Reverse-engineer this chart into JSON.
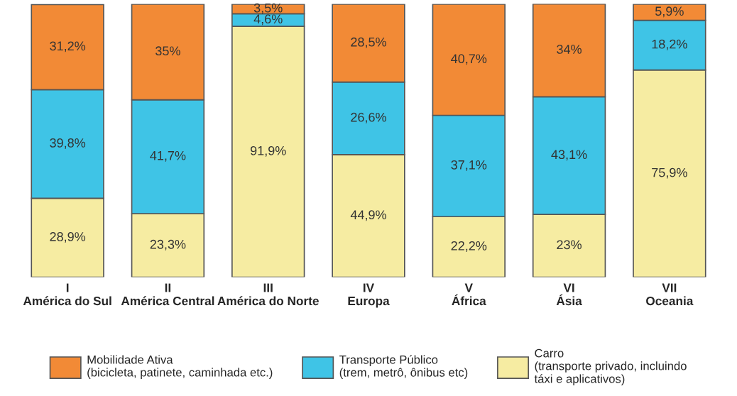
{
  "chart_data": {
    "type": "bar",
    "stacked": true,
    "legend": "bottom",
    "categories": [
      "I\nAmérica do Sul",
      "II\nAmérica Central",
      "III\nAmérica do Norte",
      "IV\nEuropa",
      "V\nÁfrica",
      "VI\nÁsia",
      "VII\nOceania"
    ],
    "series": [
      {
        "name": "Carro\n(transporte privado, incluindo\ntáxi e aplicativos)",
        "color": "#f6eca2",
        "values": [
          28.9,
          23.3,
          91.9,
          44.9,
          22.2,
          23,
          75.9
        ],
        "value_labels": [
          "28,9%",
          "23,3%",
          "91,9%",
          "44,9%",
          "22,2%",
          "23%",
          "75,9%"
        ]
      },
      {
        "name": "Transporte Público\n(trem, metrô, ônibus etc)",
        "color": "#3fc4e6",
        "values": [
          39.8,
          41.7,
          4.6,
          26.6,
          37.1,
          43.1,
          18.2
        ],
        "value_labels": [
          "39,8%",
          "41,7%",
          "4,6%",
          "26,6%",
          "37,1%",
          "43,1%",
          "18,2%"
        ]
      },
      {
        "name": "Mobilidade Ativa\n(bicicleta, patinete, caminhada etc.)",
        "color": "#f28a36",
        "values": [
          31.2,
          35,
          3.5,
          28.5,
          40.7,
          34,
          5.9
        ],
        "value_labels": [
          "31,2%",
          "35%",
          "3,5%",
          "28,5%",
          "40,7%",
          "34%",
          "5,9%"
        ]
      }
    ]
  }
}
